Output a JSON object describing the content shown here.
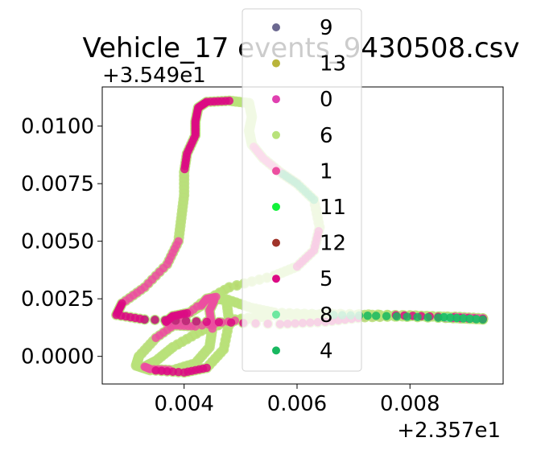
{
  "chart_data": {
    "type": "scatter",
    "title": "Vehicle_17 events_9430508.csv",
    "xlabel": "",
    "ylabel": "",
    "x_offset_text": "+2.357e1",
    "y_offset_text": "+3.549e1",
    "xlim": [
      0.00255,
      0.00965
    ],
    "ylim": [
      -0.0012,
      0.0117
    ],
    "x_ticks": [
      0.004,
      0.006,
      0.008
    ],
    "x_tick_labels": [
      "0.004",
      "0.006",
      "0.008"
    ],
    "y_ticks": [
      0.0,
      0.0025,
      0.005,
      0.0075,
      0.01
    ],
    "y_tick_labels": [
      "0.0000",
      "0.0025",
      "0.0050",
      "0.0075",
      "0.0100"
    ],
    "grid": false,
    "legend_placement": "top-center",
    "series": [
      {
        "name": "9",
        "color": "#6b6890",
        "segments": [
          [
            0,
            90
          ]
        ]
      },
      {
        "name": "13",
        "color": "#b9b43a",
        "segments": [
          [
            3,
            5
          ],
          [
            14,
            16
          ],
          [
            24,
            26
          ],
          [
            35,
            37
          ],
          [
            62,
            68
          ],
          [
            76,
            84
          ]
        ]
      },
      {
        "name": "0",
        "color": "#e040b0",
        "segments": [
          [
            1,
            2
          ],
          [
            9,
            10
          ],
          [
            19,
            21
          ],
          [
            28,
            29
          ],
          [
            44,
            46
          ],
          [
            56,
            57
          ],
          [
            71,
            73
          ],
          [
            85,
            87
          ]
        ]
      },
      {
        "name": "6",
        "color": "#b8e27a",
        "segments": [
          [
            0,
            90
          ]
        ]
      },
      {
        "name": "1",
        "color": "#ec4fa0",
        "segments": [
          [
            5,
            7
          ],
          [
            11,
            12
          ],
          [
            22,
            23
          ],
          [
            31,
            33
          ],
          [
            47,
            49
          ],
          [
            58,
            60
          ],
          [
            69,
            70
          ],
          [
            74,
            75
          ]
        ]
      },
      {
        "name": "11",
        "color": "#12f23a",
        "segments": [
          [
            52,
            52
          ]
        ]
      },
      {
        "name": "12",
        "color": "#a0342a",
        "segments": []
      },
      {
        "name": "5",
        "color": "#dc0a84",
        "segments": [
          [
            0,
            1
          ],
          [
            8,
            9
          ],
          [
            17,
            18
          ],
          [
            27,
            28
          ],
          [
            38,
            43
          ],
          [
            50,
            55
          ]
        ]
      },
      {
        "name": "8",
        "color": "#6ee8a0",
        "segments": [
          [
            88,
            89
          ]
        ]
      },
      {
        "name": "4",
        "color": "#18b860",
        "segments": [
          [
            30,
            31
          ],
          [
            61,
            62
          ],
          [
            89,
            90
          ]
        ]
      }
    ],
    "path": [
      [
        0.00929,
        0.00162
      ],
      [
        0.0085,
        0.00172
      ],
      [
        0.0076,
        0.0018
      ],
      [
        0.0066,
        0.00185
      ],
      [
        0.0056,
        0.0018
      ],
      [
        0.0049,
        0.00155
      ],
      [
        0.0042,
        0.0013
      ],
      [
        0.0038,
        0.00135
      ],
      [
        0.00368,
        0.0015
      ],
      [
        0.0038,
        0.00175
      ],
      [
        0.0041,
        0.0019
      ],
      [
        0.0043,
        0.0022
      ],
      [
        0.0044,
        0.0025
      ],
      [
        0.0046,
        0.0026
      ],
      [
        0.00475,
        0.0024
      ],
      [
        0.0048,
        0.0015
      ],
      [
        0.0047,
        0.0003
      ],
      [
        0.0044,
        -0.0005
      ],
      [
        0.004,
        -0.0007
      ],
      [
        0.0034,
        -0.0006
      ],
      [
        0.00315,
        -0.0004
      ],
      [
        0.0032,
        0.0
      ],
      [
        0.0035,
        0.0008
      ],
      [
        0.0039,
        0.0015
      ],
      [
        0.0043,
        0.0023
      ],
      [
        0.0048,
        0.003
      ],
      [
        0.0056,
        0.0035
      ],
      [
        0.006,
        0.0039
      ],
      [
        0.0063,
        0.0046
      ],
      [
        0.0064,
        0.0056
      ],
      [
        0.0063,
        0.0068
      ],
      [
        0.006,
        0.0075
      ],
      [
        0.0057,
        0.008
      ],
      [
        0.0054,
        0.0086
      ],
      [
        0.0052,
        0.0092
      ],
      [
        0.00515,
        0.0098
      ],
      [
        0.0052,
        0.0104
      ],
      [
        0.00515,
        0.011
      ],
      [
        0.0048,
        0.0111
      ],
      [
        0.0044,
        0.01105
      ],
      [
        0.00425,
        0.0108
      ],
      [
        0.0042,
        0.0102
      ],
      [
        0.0042,
        0.0096
      ],
      [
        0.00405,
        0.0088
      ],
      [
        0.004,
        0.008
      ],
      [
        0.004,
        0.007
      ],
      [
        0.00395,
        0.006
      ],
      [
        0.0039,
        0.005
      ],
      [
        0.0037,
        0.004
      ],
      [
        0.0033,
        0.003
      ],
      [
        0.0029,
        0.0023
      ],
      [
        0.0028,
        0.0018
      ],
      [
        0.0033,
        0.0016
      ],
      [
        0.0044,
        0.0015
      ],
      [
        0.0057,
        0.0014
      ],
      [
        0.0065,
        0.0015
      ],
      [
        0.0072,
        0.0017
      ],
      [
        0.008,
        0.00175
      ],
      [
        0.0088,
        0.00172
      ],
      [
        0.00929,
        0.00165
      ],
      [
        0.00929,
        0.00162
      ],
      [
        0.0085,
        0.00168
      ],
      [
        0.0074,
        0.00176
      ],
      [
        0.0065,
        0.0018
      ],
      [
        0.0056,
        0.0018
      ],
      [
        0.0049,
        0.0016
      ],
      [
        0.0043,
        0.0011
      ],
      [
        0.0038,
        0.0004
      ],
      [
        0.0035,
        -0.0002
      ],
      [
        0.0033,
        -0.00045
      ],
      [
        0.0034,
        -0.00055
      ],
      [
        0.0038,
        -0.0006
      ],
      [
        0.0042,
        -0.0003
      ],
      [
        0.00445,
        0.0004
      ],
      [
        0.0045,
        0.0012
      ],
      [
        0.00445,
        0.002
      ],
      [
        0.00455,
        0.0025
      ],
      [
        0.00478,
        0.00245
      ],
      [
        0.0052,
        0.0021
      ],
      [
        0.0056,
        0.0019
      ],
      [
        0.0064,
        0.00182
      ],
      [
        0.0072,
        0.0018
      ],
      [
        0.008,
        0.00178
      ],
      [
        0.0086,
        0.00172
      ],
      [
        0.009,
        0.00166
      ],
      [
        0.00929,
        0.00162
      ],
      [
        0.00915,
        0.00163
      ],
      [
        0.00895,
        0.00165
      ],
      [
        0.0087,
        0.00168
      ],
      [
        0.0086,
        0.0017
      ],
      [
        0.00929,
        0.0016
      ]
    ]
  }
}
